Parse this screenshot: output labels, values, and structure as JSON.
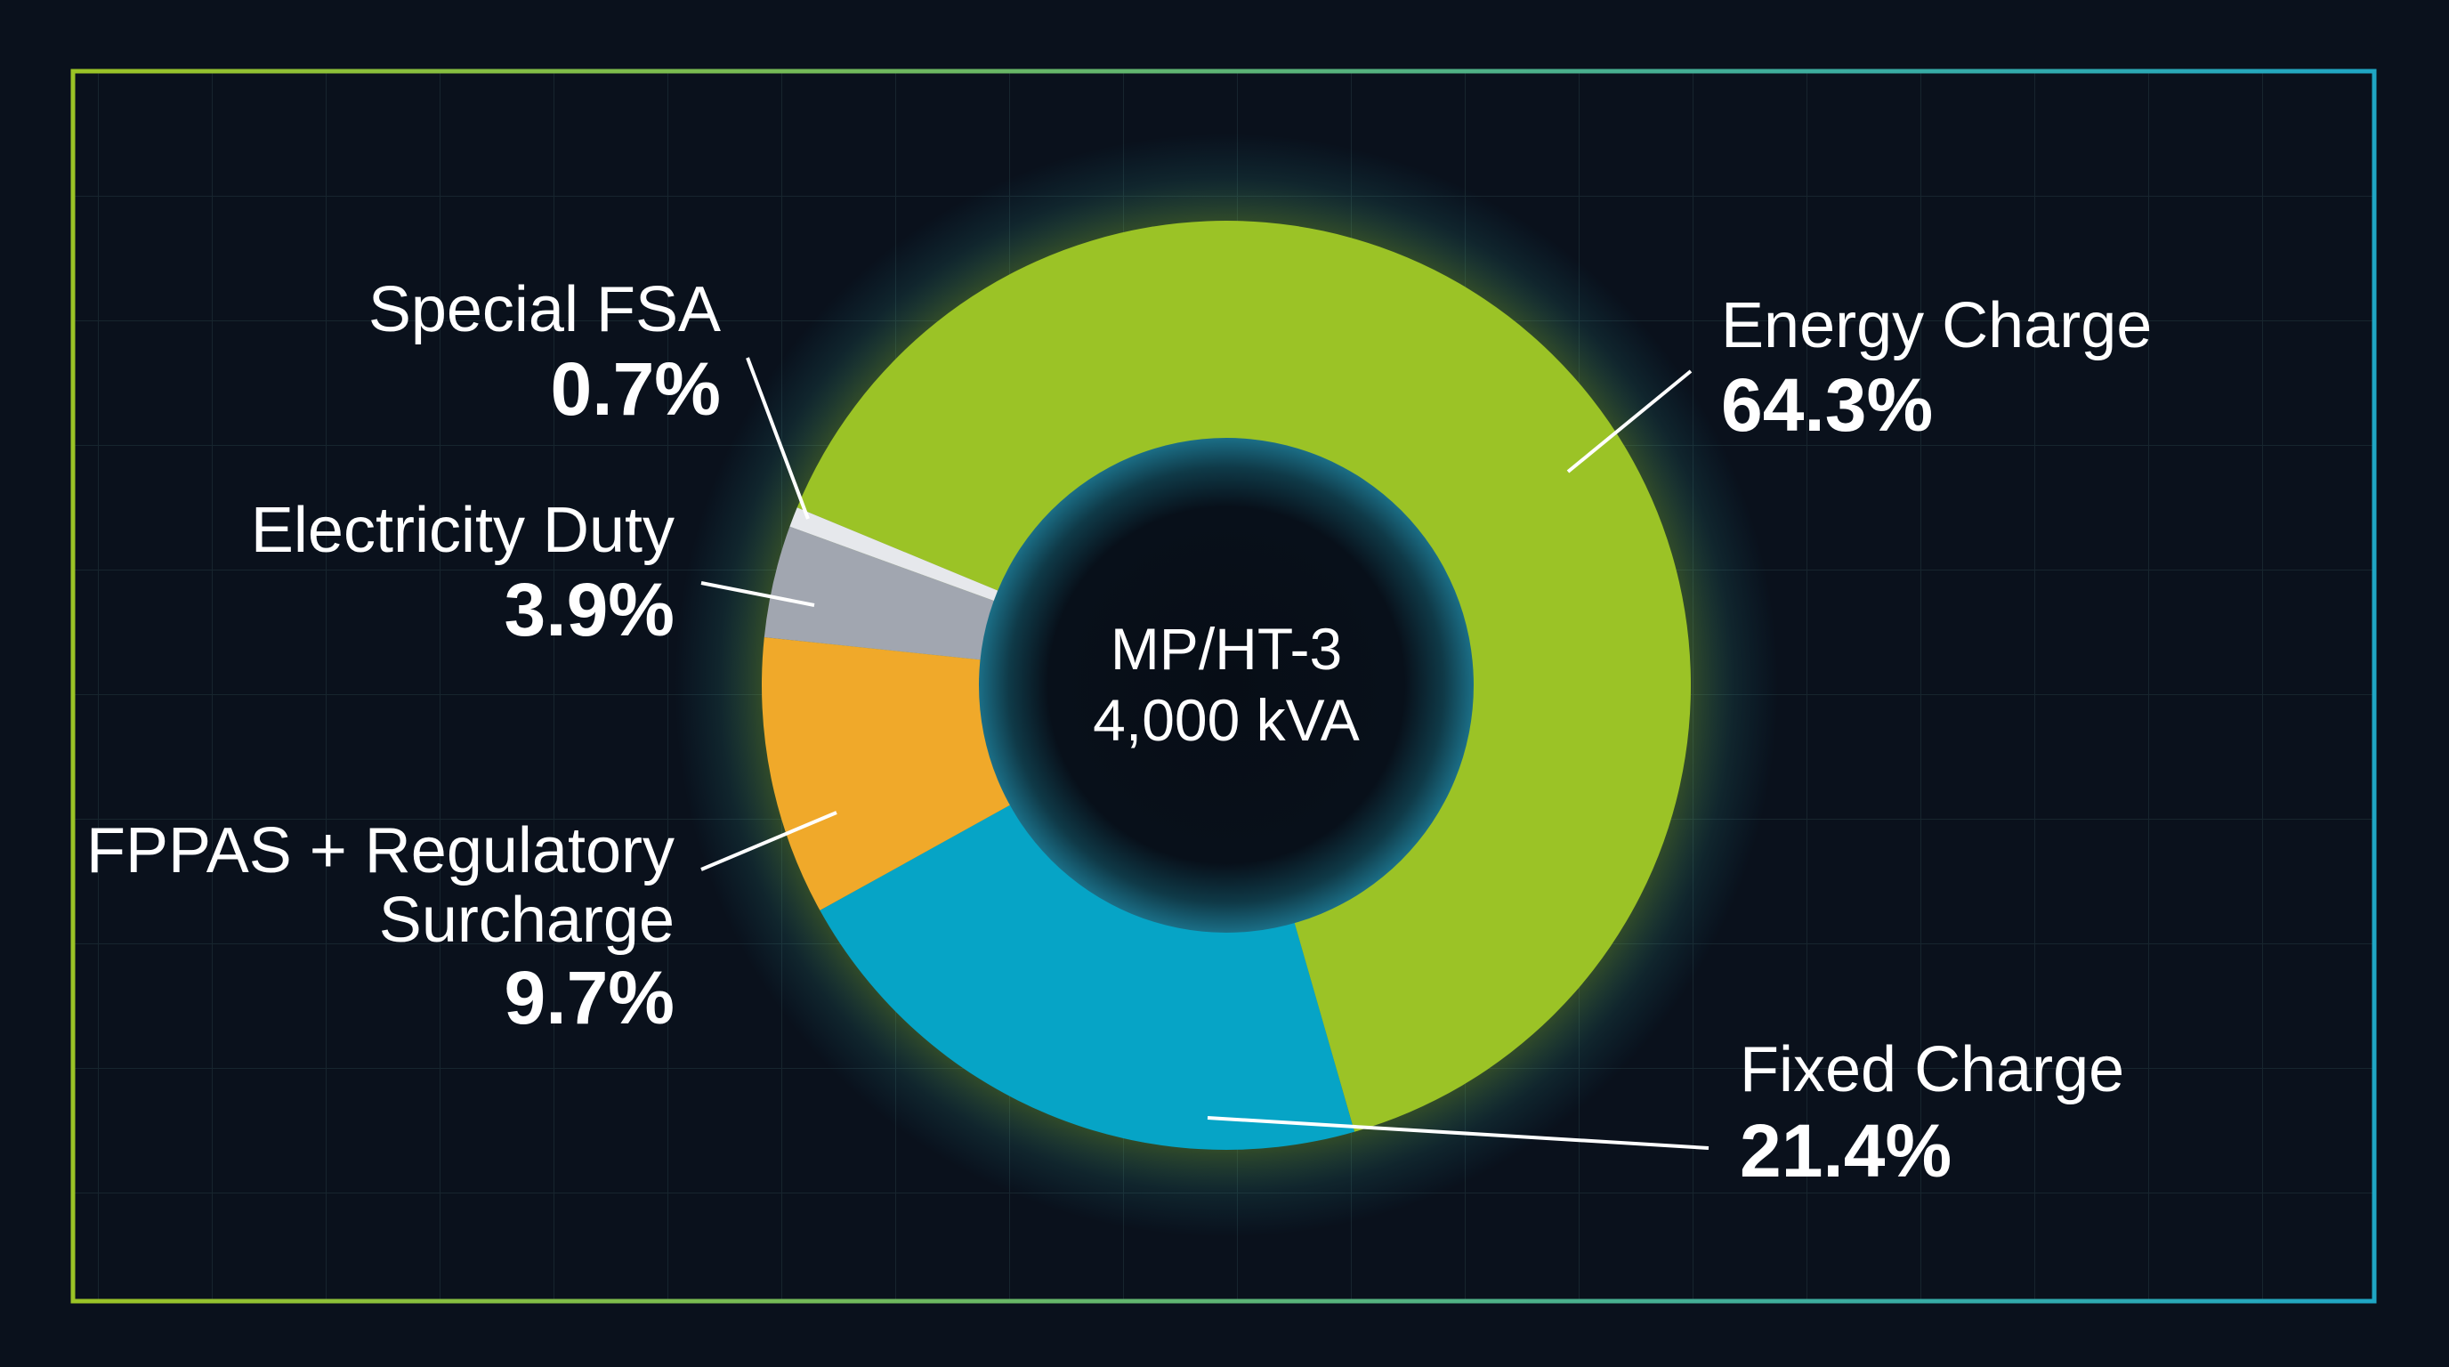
{
  "chart_data": {
    "type": "pie",
    "variant": "donut",
    "center_label": [
      "MP/HT-3",
      "4,000 kVA"
    ],
    "slices": [
      {
        "label": "Energy Charge",
        "value_label": "64.3%",
        "value": 64.3,
        "color": "#9bc326"
      },
      {
        "label": "Fixed Charge",
        "value_label": "21.4%",
        "value": 21.4,
        "color": "#06a4c6"
      },
      {
        "label": "FPPAS + Regulatory Surcharge",
        "label_lines": [
          "FPPAS + Regulatory",
          "Surcharge"
        ],
        "value_label": "9.7%",
        "value": 9.7,
        "color": "#f0a92a"
      },
      {
        "label": "Electricity Duty",
        "value_label": "3.9%",
        "value": 3.9,
        "color": "#a1a6b0"
      },
      {
        "label": "Special FSA",
        "value_label": "0.7%",
        "value": 0.7,
        "color": "#e6e8ec"
      }
    ]
  },
  "colors": {
    "background": "#0a111c",
    "grid": "#1a2a33",
    "frame_start": "#9bc326",
    "frame_end": "#1fa6c4",
    "glow": "#b8e830"
  }
}
